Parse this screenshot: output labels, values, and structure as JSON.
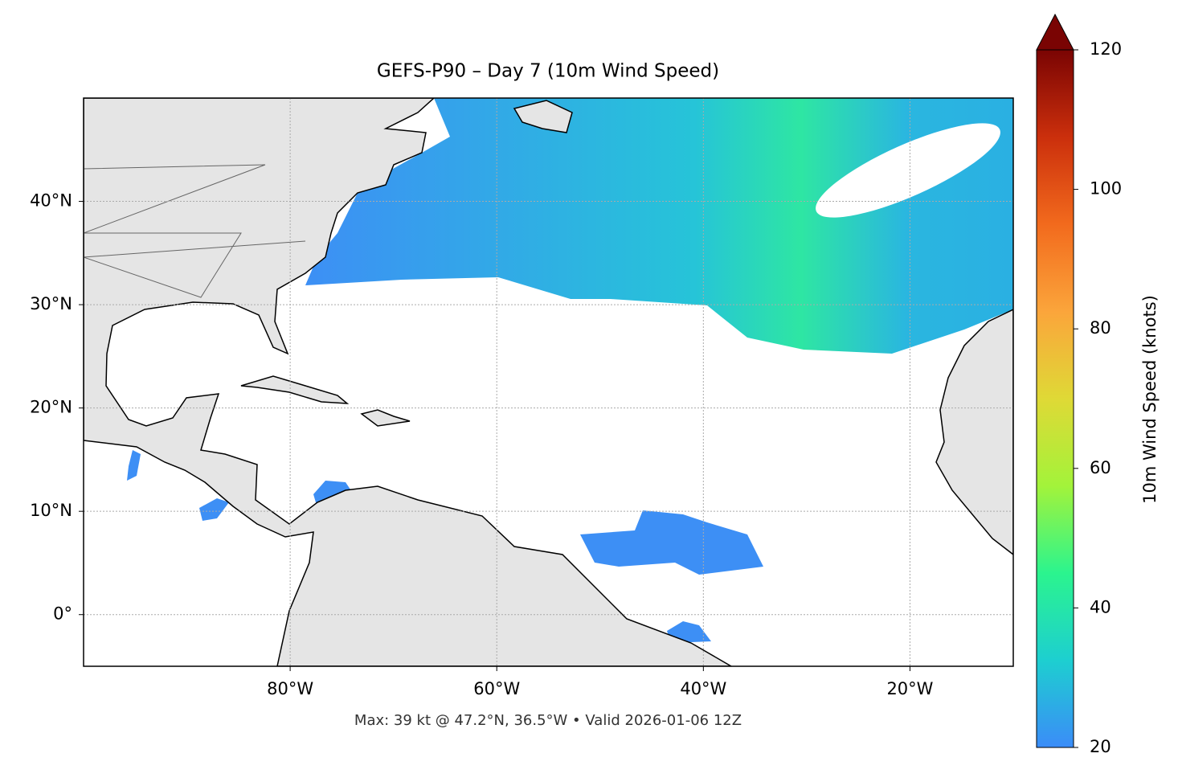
{
  "map": {
    "title": "GEFS-P90 – Day 7 (10m Wind Speed)",
    "footnote": "Max: 39 kt @ 47.2°N, 36.5°W • Valid 2026-01-06 12Z",
    "lonlim": [
      -100,
      -10
    ],
    "latlim": [
      -5,
      50
    ],
    "xticks": [
      {
        "value": -80,
        "label": "80°W"
      },
      {
        "value": -60,
        "label": "60°W"
      },
      {
        "value": -40,
        "label": "40°W"
      },
      {
        "value": -20,
        "label": "20°W"
      }
    ],
    "yticks": [
      {
        "value": 0,
        "label": "0°"
      },
      {
        "value": 10,
        "label": "10°N"
      },
      {
        "value": 20,
        "label": "20°N"
      },
      {
        "value": 30,
        "label": "30°N"
      },
      {
        "value": 40,
        "label": "40°N"
      }
    ],
    "grid": true,
    "colorbar": {
      "label": "10m Wind Speed (knots)",
      "lim": [
        20,
        120
      ],
      "ticks": [
        20,
        40,
        60,
        80,
        100,
        120
      ],
      "colors": [
        "#3b8cf8",
        "#1dcfd0",
        "#2bf48e",
        "#a3f33a",
        "#dfd936",
        "#fba53b",
        "#f26a1d",
        "#cb2f0c",
        "#7a0403"
      ]
    }
  }
}
